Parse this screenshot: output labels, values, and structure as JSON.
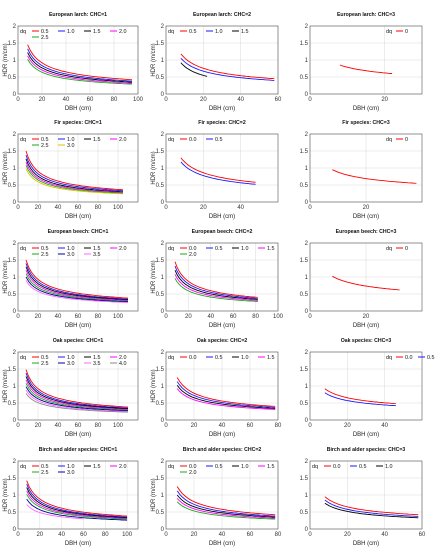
{
  "chart_data": [
    {
      "type": "line",
      "title": "European larch: CHC=1",
      "xlabel": "DBH (cm)",
      "ylabel": "HDR (m/cm)",
      "xlim": [
        0,
        100
      ],
      "ylim": [
        0,
        2
      ],
      "xticks": [
        0,
        20,
        40,
        60,
        80,
        100
      ],
      "yticks": [
        0,
        0.5,
        1,
        1.5,
        2
      ],
      "legend_title": "dq",
      "grid": true,
      "legend": "top",
      "series": [
        {
          "name": "0.5",
          "color": "#ff0000",
          "start": 1.45,
          "end": 0.42,
          "x": [
            8,
            95
          ]
        },
        {
          "name": "1.0",
          "color": "#1a1aff",
          "start": 1.33,
          "end": 0.38,
          "x": [
            8,
            95
          ]
        },
        {
          "name": "1.5",
          "color": "#000000",
          "start": 1.22,
          "end": 0.35,
          "x": [
            8,
            95
          ]
        },
        {
          "name": "2.0",
          "color": "#ff00ff",
          "start": 1.12,
          "end": 0.32,
          "x": [
            8,
            95
          ]
        },
        {
          "name": "2.5",
          "color": "#1aaa1a",
          "start": 1.02,
          "end": 0.29,
          "x": [
            8,
            95
          ]
        }
      ]
    },
    {
      "type": "line",
      "title": "European larch: CHC=2",
      "xlabel": "DBH (cm)",
      "ylabel": "HDR (m/cm)",
      "xlim": [
        0,
        60
      ],
      "ylim": [
        0,
        2
      ],
      "xticks": [
        0,
        20,
        40,
        60
      ],
      "yticks": [
        0,
        0.5,
        1,
        1.5,
        2
      ],
      "legend_title": "dq",
      "grid": true,
      "legend": "top",
      "series": [
        {
          "name": "0.5",
          "color": "#ff0000",
          "start": 1.18,
          "end": 0.45,
          "x": [
            8,
            58
          ]
        },
        {
          "name": "1.0",
          "color": "#1a1aff",
          "start": 1.05,
          "end": 0.4,
          "x": [
            8,
            58
          ]
        },
        {
          "name": "1.5",
          "color": "#000000",
          "start": 0.92,
          "end": 0.52,
          "x": [
            8,
            22
          ]
        }
      ]
    },
    {
      "type": "line",
      "title": "European larch: CHC=3",
      "xlabel": "DBH (cm)",
      "ylabel": "",
      "xlim": [
        0,
        30
      ],
      "ylim": [
        0,
        2
      ],
      "xticks": [
        0,
        20
      ],
      "yticks": [
        0,
        0.5,
        1,
        1.5,
        2
      ],
      "legend_title": "dq",
      "grid": true,
      "legend": "top-right",
      "series": [
        {
          "name": "0",
          "color": "#ff0000",
          "start": 0.85,
          "end": 0.6,
          "x": [
            8,
            22
          ]
        }
      ]
    },
    {
      "type": "line",
      "title": "Fir species: CHC=1",
      "xlabel": "DBH (cm)",
      "ylabel": "HDR (m/cm)",
      "xlim": [
        0,
        120
      ],
      "ylim": [
        0,
        2
      ],
      "xticks": [
        0,
        20,
        40,
        60,
        80,
        100
      ],
      "yticks": [
        0,
        0.5,
        1,
        1.5,
        2
      ],
      "legend_title": "dq",
      "grid": true,
      "legend": "top",
      "series": [
        {
          "name": "0.5",
          "color": "#ff0000",
          "start": 1.5,
          "end": 0.36,
          "x": [
            8,
            105
          ]
        },
        {
          "name": "1.0",
          "color": "#1a1aff",
          "start": 1.38,
          "end": 0.33,
          "x": [
            8,
            105
          ]
        },
        {
          "name": "1.5",
          "color": "#000000",
          "start": 1.27,
          "end": 0.3,
          "x": [
            8,
            105
          ]
        },
        {
          "name": "2.0",
          "color": "#ff00ff",
          "start": 1.17,
          "end": 0.28,
          "x": [
            8,
            105
          ]
        },
        {
          "name": "2.5",
          "color": "#1aaa1a",
          "start": 1.08,
          "end": 0.26,
          "x": [
            8,
            105
          ]
        },
        {
          "name": "3.0",
          "color": "#e0c000",
          "start": 0.98,
          "end": 0.24,
          "x": [
            8,
            105
          ]
        }
      ]
    },
    {
      "type": "line",
      "title": "Fir species: CHC=2",
      "xlabel": "DBH (cm)",
      "ylabel": "HDR (m/cm)",
      "xlim": [
        0,
        60
      ],
      "ylim": [
        0,
        2
      ],
      "xticks": [
        0,
        20,
        40
      ],
      "yticks": [
        0,
        0.5,
        1,
        1.5,
        2
      ],
      "legend_title": "dq",
      "grid": true,
      "legend": "top",
      "series": [
        {
          "name": "0.0",
          "color": "#ff0000",
          "start": 1.3,
          "end": 0.58,
          "x": [
            8,
            48
          ]
        },
        {
          "name": "0.5",
          "color": "#1a1aff",
          "start": 1.18,
          "end": 0.52,
          "x": [
            8,
            48
          ]
        }
      ]
    },
    {
      "type": "line",
      "title": "Fir species: CHC=3",
      "xlabel": "DBH (cm)",
      "ylabel": "",
      "xlim": [
        0,
        40
      ],
      "ylim": [
        0,
        2
      ],
      "xticks": [
        0,
        20
      ],
      "yticks": [
        0,
        0.5,
        1,
        1.5,
        2
      ],
      "legend_title": "dq",
      "grid": true,
      "legend": "top-right",
      "series": [
        {
          "name": "0",
          "color": "#ff0000",
          "start": 0.95,
          "end": 0.55,
          "x": [
            8,
            38
          ]
        }
      ]
    },
    {
      "type": "line",
      "title": "European beech: CHC=1",
      "xlabel": "DBH (cm)",
      "ylabel": "HDR (m/cm)",
      "xlim": [
        0,
        120
      ],
      "ylim": [
        0,
        2
      ],
      "xticks": [
        0,
        20,
        40,
        60,
        80,
        100
      ],
      "yticks": [
        0,
        0.5,
        1,
        1.5,
        2
      ],
      "legend_title": "dq",
      "grid": true,
      "legend": "top",
      "series": [
        {
          "name": "0.5",
          "color": "#ff0000",
          "start": 1.5,
          "end": 0.38,
          "x": [
            8,
            110
          ]
        },
        {
          "name": "1.0",
          "color": "#1a1aff",
          "start": 1.4,
          "end": 0.35,
          "x": [
            8,
            110
          ]
        },
        {
          "name": "1.5",
          "color": "#000000",
          "start": 1.3,
          "end": 0.33,
          "x": [
            8,
            110
          ]
        },
        {
          "name": "2.0",
          "color": "#ff00ff",
          "start": 1.2,
          "end": 0.31,
          "x": [
            8,
            110
          ]
        },
        {
          "name": "2.5",
          "color": "#1aaa1a",
          "start": 1.1,
          "end": 0.29,
          "x": [
            8,
            110
          ]
        },
        {
          "name": "3.0",
          "color": "#0000a0",
          "start": 1.0,
          "end": 0.27,
          "x": [
            8,
            110
          ]
        },
        {
          "name": "3.5",
          "color": "#ff66ff",
          "start": 0.9,
          "end": 0.25,
          "x": [
            8,
            110
          ]
        }
      ]
    },
    {
      "type": "line",
      "title": "European beech: CHC=2",
      "xlabel": "DBH (cm)",
      "ylabel": "HDR (m/cm)",
      "xlim": [
        0,
        100
      ],
      "ylim": [
        0,
        2
      ],
      "xticks": [
        0,
        20,
        40,
        60,
        80,
        100
      ],
      "yticks": [
        0,
        0.5,
        1,
        1.5,
        2
      ],
      "legend_title": "dq",
      "grid": true,
      "legend": "top",
      "series": [
        {
          "name": "0.0",
          "color": "#ff0000",
          "start": 1.45,
          "end": 0.4,
          "x": [
            8,
            82
          ]
        },
        {
          "name": "0.5",
          "color": "#1a1aff",
          "start": 1.32,
          "end": 0.37,
          "x": [
            8,
            82
          ]
        },
        {
          "name": "1.0",
          "color": "#000000",
          "start": 1.2,
          "end": 0.34,
          "x": [
            8,
            82
          ]
        },
        {
          "name": "1.5",
          "color": "#ff00ff",
          "start": 1.08,
          "end": 0.31,
          "x": [
            8,
            82
          ]
        },
        {
          "name": "2.0",
          "color": "#1aaa1a",
          "start": 0.96,
          "end": 0.28,
          "x": [
            8,
            82
          ]
        }
      ]
    },
    {
      "type": "line",
      "title": "European beech: CHC=3",
      "xlabel": "DBH (cm)",
      "ylabel": "",
      "xlim": [
        0,
        40
      ],
      "ylim": [
        0,
        2
      ],
      "xticks": [
        0,
        20
      ],
      "yticks": [
        0,
        0.5,
        1,
        1.5,
        2
      ],
      "legend_title": "dq",
      "grid": true,
      "legend": "top-right",
      "series": [
        {
          "name": "0",
          "color": "#ff0000",
          "start": 1.02,
          "end": 0.62,
          "x": [
            8,
            32
          ]
        }
      ]
    },
    {
      "type": "line",
      "title": "Oak species: CHC=1",
      "xlabel": "DBH (cm)",
      "ylabel": "HDR (m/cm)",
      "xlim": [
        0,
        120
      ],
      "ylim": [
        0,
        2
      ],
      "xticks": [
        0,
        20,
        40,
        60,
        80,
        100
      ],
      "yticks": [
        0,
        0.5,
        1,
        1.5,
        2
      ],
      "legend_title": "dq",
      "grid": true,
      "legend": "top",
      "series": [
        {
          "name": "0.5",
          "color": "#ff0000",
          "start": 1.48,
          "end": 0.38,
          "x": [
            8,
            110
          ]
        },
        {
          "name": "1.0",
          "color": "#1a1aff",
          "start": 1.38,
          "end": 0.35,
          "x": [
            8,
            110
          ]
        },
        {
          "name": "1.5",
          "color": "#000000",
          "start": 1.28,
          "end": 0.33,
          "x": [
            8,
            110
          ]
        },
        {
          "name": "2.0",
          "color": "#ff00ff",
          "start": 1.18,
          "end": 0.31,
          "x": [
            8,
            110
          ]
        },
        {
          "name": "2.5",
          "color": "#1aaa1a",
          "start": 1.08,
          "end": 0.29,
          "x": [
            8,
            110
          ]
        },
        {
          "name": "3.0",
          "color": "#0000a0",
          "start": 0.98,
          "end": 0.27,
          "x": [
            8,
            110
          ]
        },
        {
          "name": "3.5",
          "color": "#ff66ff",
          "start": 0.88,
          "end": 0.25,
          "x": [
            8,
            110
          ]
        },
        {
          "name": "4.0",
          "color": "#8a8a8a",
          "start": 0.78,
          "end": 0.23,
          "x": [
            8,
            110
          ]
        }
      ]
    },
    {
      "type": "line",
      "title": "Oak species: CHC=2",
      "xlabel": "DBH (cm)",
      "ylabel": "HDR (m/cm)",
      "xlim": [
        0,
        80
      ],
      "ylim": [
        0,
        2
      ],
      "xticks": [
        0,
        20,
        40,
        60,
        80
      ],
      "yticks": [
        0,
        0.5,
        1,
        1.5,
        2
      ],
      "legend_title": "dq",
      "grid": true,
      "legend": "top",
      "series": [
        {
          "name": "0.0",
          "color": "#ff0000",
          "start": 1.25,
          "end": 0.4,
          "x": [
            8,
            78
          ]
        },
        {
          "name": "0.5",
          "color": "#1a1aff",
          "start": 1.13,
          "end": 0.37,
          "x": [
            8,
            78
          ]
        },
        {
          "name": "1.0",
          "color": "#000000",
          "start": 1.02,
          "end": 0.34,
          "x": [
            8,
            78
          ]
        },
        {
          "name": "1.5",
          "color": "#ff00ff",
          "start": 0.92,
          "end": 0.31,
          "x": [
            8,
            78
          ]
        }
      ]
    },
    {
      "type": "line",
      "title": "Oak species: CHC=3",
      "xlabel": "DBH (cm)",
      "ylabel": "",
      "xlim": [
        0,
        60
      ],
      "ylim": [
        0,
        2
      ],
      "xticks": [
        0,
        20,
        40
      ],
      "yticks": [
        0,
        0.5,
        1,
        1.5,
        2
      ],
      "legend_title": "dq",
      "grid": true,
      "legend": "top-right",
      "series": [
        {
          "name": "0.0",
          "color": "#ff0000",
          "start": 0.92,
          "end": 0.48,
          "x": [
            8,
            46
          ]
        },
        {
          "name": "0.5",
          "color": "#1a1aff",
          "start": 0.8,
          "end": 0.42,
          "x": [
            8,
            46
          ]
        }
      ]
    },
    {
      "type": "line",
      "title": "Birch and alder species: CHC=1",
      "xlabel": "DBH (cm)",
      "ylabel": "HDR (m/cm)",
      "xlim": [
        0,
        110
      ],
      "ylim": [
        0,
        2
      ],
      "xticks": [
        0,
        20,
        40,
        60,
        80,
        100
      ],
      "yticks": [
        0,
        0.5,
        1,
        1.5,
        2
      ],
      "legend_title": "dq",
      "grid": true,
      "legend": "top",
      "series": [
        {
          "name": "0.5",
          "color": "#ff0000",
          "start": 1.42,
          "end": 0.38,
          "x": [
            8,
            100
          ]
        },
        {
          "name": "1.0",
          "color": "#1a1aff",
          "start": 1.32,
          "end": 0.35,
          "x": [
            8,
            100
          ]
        },
        {
          "name": "1.5",
          "color": "#000000",
          "start": 1.22,
          "end": 0.33,
          "x": [
            8,
            100
          ]
        },
        {
          "name": "2.0",
          "color": "#ff00ff",
          "start": 1.12,
          "end": 0.31,
          "x": [
            8,
            100
          ]
        },
        {
          "name": "2.5",
          "color": "#1aaa1a",
          "start": 1.02,
          "end": 0.29,
          "x": [
            8,
            100
          ]
        },
        {
          "name": "3.0",
          "color": "#0000a0",
          "start": 0.88,
          "end": 0.26,
          "x": [
            8,
            100
          ]
        },
        {
          "name": "",
          "color": "#ff66ff",
          "start": 0.72,
          "end": 0.3,
          "x": [
            8,
            60
          ]
        }
      ]
    },
    {
      "type": "line",
      "title": "Birch and alder species: CHC=2",
      "xlabel": "DBH (cm)",
      "ylabel": "HDR (m/cm)",
      "xlim": [
        0,
        80
      ],
      "ylim": [
        0,
        2
      ],
      "xticks": [
        0,
        20,
        40,
        60,
        80
      ],
      "yticks": [
        0,
        0.5,
        1,
        1.5,
        2
      ],
      "legend_title": "dq",
      "grid": true,
      "legend": "top",
      "series": [
        {
          "name": "0.0",
          "color": "#ff0000",
          "start": 1.25,
          "end": 0.42,
          "x": [
            8,
            78
          ]
        },
        {
          "name": "0.5",
          "color": "#1a1aff",
          "start": 1.12,
          "end": 0.38,
          "x": [
            8,
            78
          ]
        },
        {
          "name": "1.0",
          "color": "#000000",
          "start": 1.0,
          "end": 0.35,
          "x": [
            8,
            78
          ]
        },
        {
          "name": "1.5",
          "color": "#ff00ff",
          "start": 0.9,
          "end": 0.32,
          "x": [
            8,
            78
          ]
        },
        {
          "name": "2.0",
          "color": "#1aaa1a",
          "start": 0.8,
          "end": 0.29,
          "x": [
            8,
            78
          ]
        }
      ]
    },
    {
      "type": "line",
      "title": "Birch and alder species: CHC=3",
      "xlabel": "DBH (cm)",
      "ylabel": "",
      "xlim": [
        0,
        60
      ],
      "ylim": [
        0,
        2
      ],
      "xticks": [
        0,
        20,
        40,
        60
      ],
      "yticks": [
        0,
        0.5,
        1,
        1.5,
        2
      ],
      "legend_title": "dq",
      "grid": true,
      "legend": "top",
      "series": [
        {
          "name": "0.0",
          "color": "#ff0000",
          "start": 0.95,
          "end": 0.42,
          "x": [
            8,
            58
          ]
        },
        {
          "name": "0.5",
          "color": "#1a1aff",
          "start": 0.85,
          "end": 0.37,
          "x": [
            8,
            58
          ]
        },
        {
          "name": "1.0",
          "color": "#000000",
          "start": 0.76,
          "end": 0.33,
          "x": [
            8,
            58
          ]
        }
      ]
    }
  ]
}
